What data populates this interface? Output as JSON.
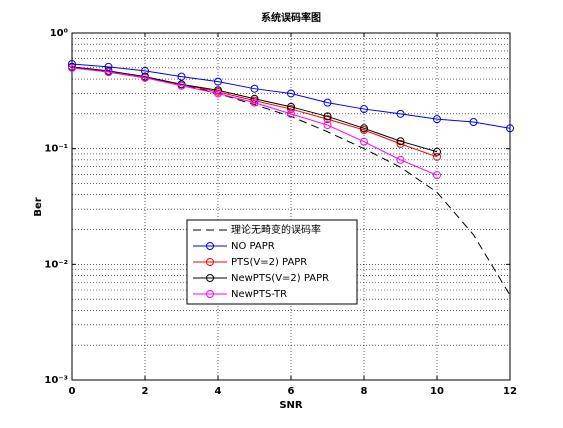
{
  "chart_data": {
    "type": "line",
    "title": "系统误码率图",
    "x_label": "SNR",
    "y_label": "Ber",
    "log_y": true,
    "grid": true,
    "legend_position": "lower-left",
    "xlim": [
      0,
      12
    ],
    "xticks": [
      0,
      2,
      4,
      6,
      8,
      10,
      12
    ],
    "ylim": [
      0.001,
      1
    ],
    "yticks": [
      {
        "value": 0.001,
        "label": "10⁻³"
      },
      {
        "value": 0.01,
        "label": "10⁻²"
      },
      {
        "value": 0.1,
        "label": "10⁻¹"
      },
      {
        "value": 1,
        "label": "10⁰"
      }
    ],
    "series": [
      {
        "name": "理论无畸变的误码率",
        "color": "#000000",
        "linestyle": "dashed",
        "marker": "none",
        "x": [
          0,
          1,
          2,
          3,
          4,
          5,
          6,
          7,
          8,
          9,
          10,
          11,
          12
        ],
        "values": [
          0.51,
          0.46,
          0.41,
          0.36,
          0.3,
          0.24,
          0.19,
          0.14,
          0.1,
          0.069,
          0.042,
          0.018,
          0.0054
        ]
      },
      {
        "name": "NO PAPR",
        "color": "#0000ff",
        "linestyle": "solid",
        "marker": "circle",
        "x": [
          0,
          1,
          2,
          3,
          4,
          5,
          6,
          7,
          8,
          9,
          10,
          11,
          12
        ],
        "values": [
          0.54,
          0.51,
          0.47,
          0.42,
          0.38,
          0.33,
          0.3,
          0.25,
          0.22,
          0.2,
          0.18,
          0.17,
          0.15
        ]
      },
      {
        "name": "PTS(V=2) PAPR",
        "color": "#ff0000",
        "linestyle": "solid",
        "marker": "circle",
        "x": [
          0,
          1,
          2,
          3,
          4,
          5,
          6,
          7,
          8,
          9,
          10
        ],
        "values": [
          0.51,
          0.46,
          0.41,
          0.36,
          0.31,
          0.26,
          0.22,
          0.18,
          0.145,
          0.11,
          0.085
        ]
      },
      {
        "name": "NewPTS(V=2) PAPR",
        "color": "#000000",
        "linestyle": "solid",
        "marker": "circle",
        "x": [
          0,
          1,
          2,
          3,
          4,
          5,
          6,
          7,
          8,
          9,
          10
        ],
        "values": [
          0.51,
          0.47,
          0.42,
          0.36,
          0.32,
          0.27,
          0.23,
          0.19,
          0.15,
          0.116,
          0.094
        ]
      },
      {
        "name": "NewPTS-TR",
        "color": "#ff00ff",
        "linestyle": "solid",
        "marker": "circle",
        "x": [
          0,
          1,
          2,
          3,
          4,
          5,
          6,
          7,
          8,
          9,
          10
        ],
        "values": [
          0.5,
          0.46,
          0.41,
          0.35,
          0.3,
          0.25,
          0.2,
          0.16,
          0.115,
          0.08,
          0.059
        ]
      }
    ]
  }
}
